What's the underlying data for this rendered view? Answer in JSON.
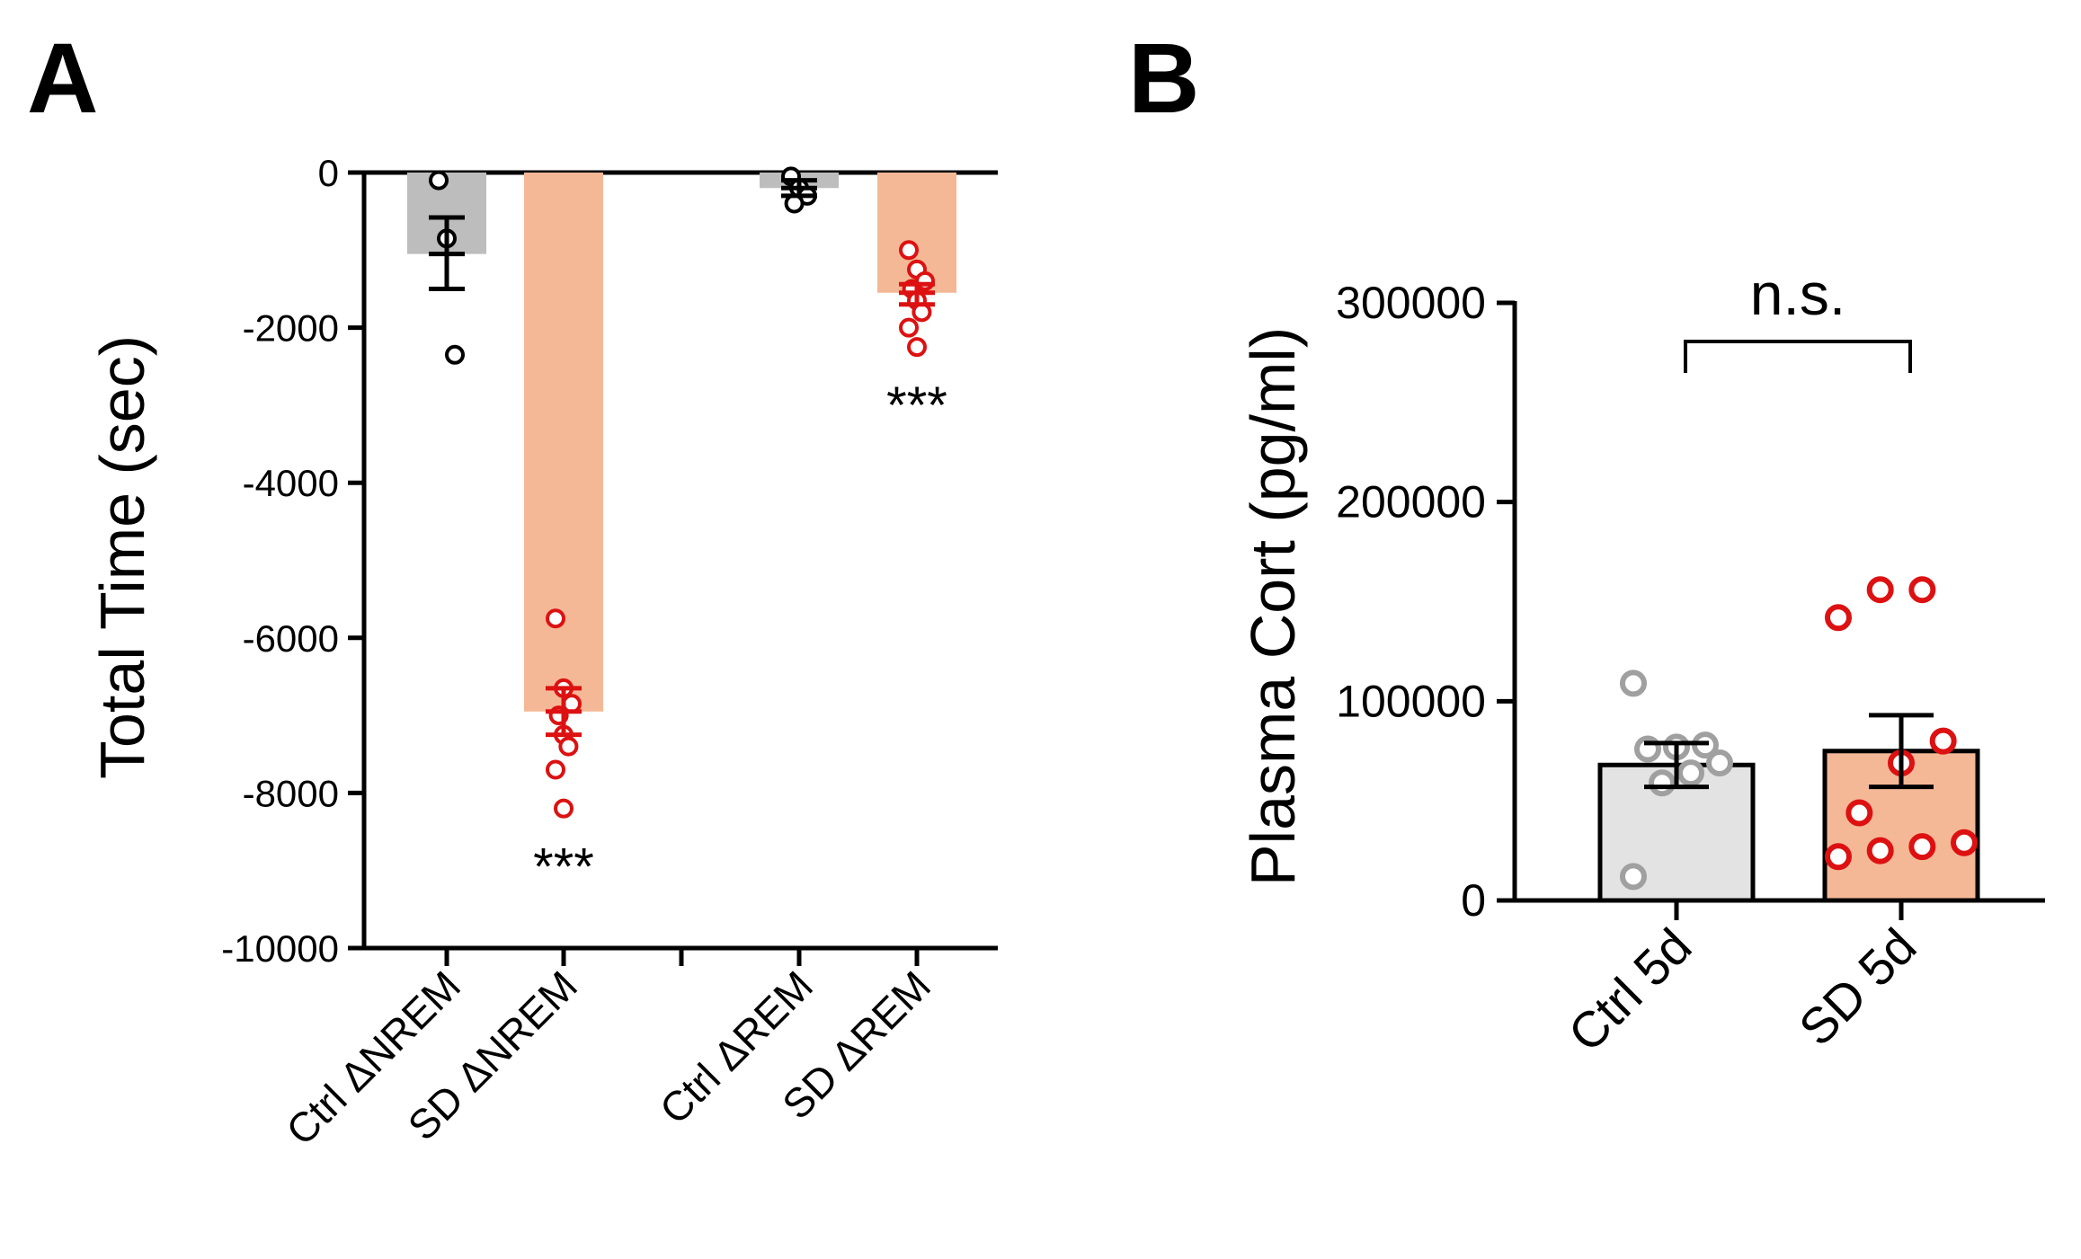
{
  "chart_data": [
    {
      "panel_label": "A",
      "type": "bar",
      "ylabel": "Total Time (sec)",
      "ylim": [
        -10000,
        0
      ],
      "yticks": [
        0,
        -2000,
        -4000,
        -6000,
        -8000,
        -10000
      ],
      "grid": false,
      "legend": "none",
      "categories": [
        "Ctrl ΔNREM",
        "SD ΔNREM",
        "Ctrl ΔREM",
        "SD ΔREM"
      ],
      "values": [
        -1050,
        -6950,
        -200,
        -1550
      ],
      "sem_low": [
        -1500,
        -7250,
        -300,
        -1700
      ],
      "sem_high": [
        -580,
        -6650,
        -100,
        -1440
      ],
      "bar_colors": [
        "#bdbdbd",
        "#f4b896",
        "#bdbdbd",
        "#f4b896"
      ],
      "point_colors": [
        "#000000",
        "#dd1111",
        "#000000",
        "#dd1111"
      ],
      "points": [
        [
          -100,
          -850,
          -2350
        ],
        [
          -5750,
          -6650,
          -6850,
          -7000,
          -7250,
          -7400,
          -7700,
          -8200
        ],
        [
          -50,
          -200,
          -300,
          -400
        ],
        [
          -1000,
          -1250,
          -1400,
          -1500,
          -1650,
          -1800,
          -2000,
          -2250
        ]
      ],
      "significance": [
        "",
        "***",
        "",
        "***"
      ]
    },
    {
      "panel_label": "B",
      "type": "bar",
      "ylabel": "Plasma Cort (pg/ml)",
      "ylim": [
        0,
        300000
      ],
      "yticks": [
        0,
        100000,
        200000,
        300000
      ],
      "grid": false,
      "legend": "none",
      "categories": [
        "Ctrl 5d",
        "SD 5d"
      ],
      "values": [
        68000,
        75000
      ],
      "sem_low": [
        57000,
        57000
      ],
      "sem_high": [
        79000,
        93000
      ],
      "bar_colors": [
        "#e3e3e3",
        "#f4b896"
      ],
      "point_colors": [
        "#a0a0a0",
        "#dd1111"
      ],
      "points": [
        [
          12000,
          59000,
          64000,
          69000,
          76000,
          77000,
          78000,
          109000
        ],
        [
          22000,
          25000,
          27000,
          29000,
          44000,
          69000,
          80000,
          142000,
          156000,
          156000
        ]
      ],
      "comparison": "n.s."
    }
  ]
}
